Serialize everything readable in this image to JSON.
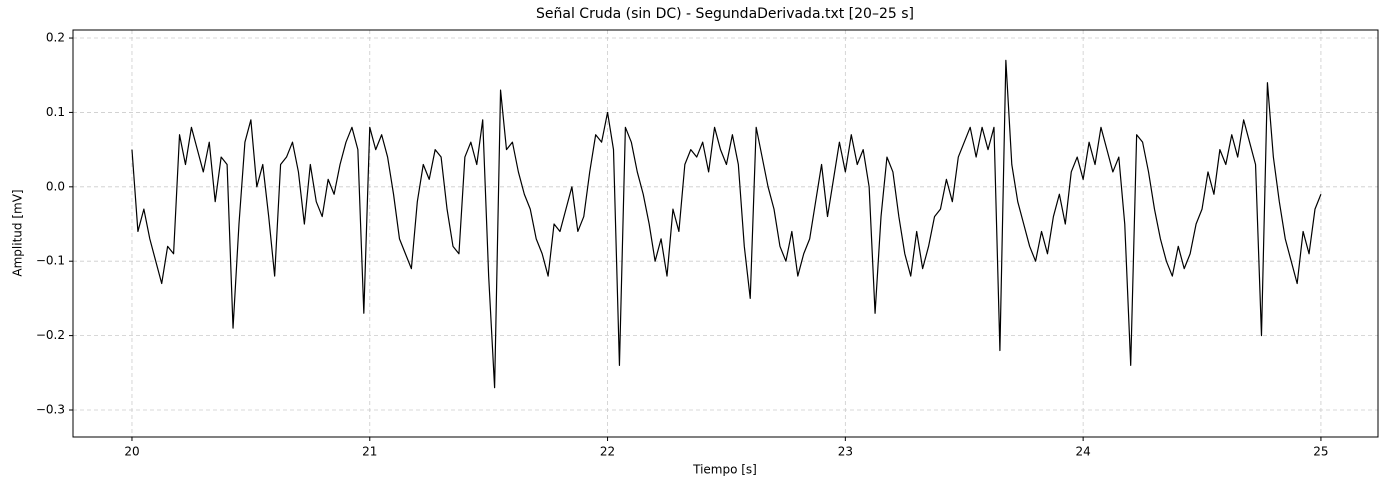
{
  "chart_data": {
    "type": "line",
    "title": "Señal Cruda (sin DC) - SegundaDerivada.txt [20–25 s]",
    "x_label": "Tiempo [s]",
    "y_label": "Amplitud [mV]",
    "x": [
      20,
      20.025,
      20.05,
      20.075,
      20.1,
      20.125,
      20.15,
      20.175,
      20.2,
      20.225,
      20.25,
      20.275,
      20.3,
      20.325,
      20.35,
      20.375,
      20.4,
      20.425,
      20.45,
      20.475,
      20.5,
      20.525,
      20.55,
      20.575,
      20.6,
      20.625,
      20.65,
      20.675,
      20.7,
      20.725,
      20.75,
      20.775,
      20.8,
      20.825,
      20.85,
      20.875,
      20.9,
      20.925,
      20.95,
      20.975,
      21,
      21.025,
      21.05,
      21.075,
      21.1,
      21.125,
      21.15,
      21.175,
      21.2,
      21.225,
      21.25,
      21.275,
      21.3,
      21.325,
      21.35,
      21.375,
      21.4,
      21.425,
      21.45,
      21.475,
      21.5,
      21.525,
      21.55,
      21.575,
      21.6,
      21.625,
      21.65,
      21.675,
      21.7,
      21.725,
      21.75,
      21.775,
      21.8,
      21.825,
      21.85,
      21.875,
      21.9,
      21.925,
      21.95,
      21.975,
      22,
      22.025,
      22.05,
      22.075,
      22.1,
      22.125,
      22.15,
      22.175,
      22.2,
      22.225,
      22.25,
      22.275,
      22.3,
      22.325,
      22.35,
      22.375,
      22.4,
      22.425,
      22.45,
      22.475,
      22.5,
      22.525,
      22.55,
      22.575,
      22.6,
      22.625,
      22.65,
      22.675,
      22.7,
      22.725,
      22.75,
      22.775,
      22.8,
      22.825,
      22.85,
      22.875,
      22.9,
      22.925,
      22.95,
      22.975,
      23,
      23.025,
      23.05,
      23.075,
      23.1,
      23.125,
      23.15,
      23.175,
      23.2,
      23.225,
      23.25,
      23.275,
      23.3,
      23.325,
      23.35,
      23.375,
      23.4,
      23.425,
      23.45,
      23.475,
      23.5,
      23.525,
      23.55,
      23.575,
      23.6,
      23.625,
      23.65,
      23.675,
      23.7,
      23.725,
      23.75,
      23.775,
      23.8,
      23.825,
      23.85,
      23.875,
      23.9,
      23.925,
      23.95,
      23.975,
      24,
      24.025,
      24.05,
      24.075,
      24.1,
      24.125,
      24.15,
      24.175,
      24.2,
      24.225,
      24.25,
      24.275,
      24.3,
      24.325,
      24.35,
      24.375,
      24.4,
      24.425,
      24.45,
      24.475,
      24.5,
      24.525,
      24.55,
      24.575,
      24.6,
      24.625,
      24.65,
      24.675,
      24.7,
      24.725,
      24.75,
      24.775,
      24.8,
      24.825,
      24.85,
      24.875,
      24.9,
      24.925,
      24.95,
      24.975,
      25
    ],
    "series": [
      {
        "name": "Señal",
        "color": "#000000",
        "values": [
          0.05,
          -0.06,
          -0.03,
          -0.07,
          -0.1,
          -0.13,
          -0.08,
          -0.09,
          0.07,
          0.03,
          0.08,
          0.05,
          0.02,
          0.06,
          -0.02,
          0.04,
          0.03,
          -0.19,
          -0.05,
          0.06,
          0.09,
          0.0,
          0.03,
          -0.04,
          -0.12,
          0.03,
          0.04,
          0.06,
          0.02,
          -0.05,
          0.03,
          -0.02,
          -0.04,
          0.01,
          -0.01,
          0.03,
          0.06,
          0.08,
          0.05,
          -0.17,
          0.08,
          0.05,
          0.07,
          0.04,
          -0.01,
          -0.07,
          -0.09,
          -0.11,
          -0.02,
          0.03,
          0.01,
          0.05,
          0.04,
          -0.03,
          -0.08,
          -0.09,
          0.04,
          0.06,
          0.03,
          0.09,
          -0.12,
          -0.27,
          0.13,
          0.05,
          0.06,
          0.02,
          -0.01,
          -0.03,
          -0.07,
          -0.09,
          -0.12,
          -0.05,
          -0.06,
          -0.03,
          0.0,
          -0.06,
          -0.04,
          0.02,
          0.07,
          0.06,
          0.1,
          0.05,
          -0.24,
          0.08,
          0.06,
          0.02,
          -0.01,
          -0.05,
          -0.1,
          -0.07,
          -0.12,
          -0.03,
          -0.06,
          0.03,
          0.05,
          0.04,
          0.06,
          0.02,
          0.08,
          0.05,
          0.03,
          0.07,
          0.03,
          -0.08,
          -0.15,
          0.08,
          0.04,
          0.0,
          -0.03,
          -0.08,
          -0.1,
          -0.06,
          -0.12,
          -0.09,
          -0.07,
          -0.02,
          0.03,
          -0.04,
          0.01,
          0.06,
          0.02,
          0.07,
          0.03,
          0.05,
          0.0,
          -0.17,
          -0.04,
          0.04,
          0.02,
          -0.04,
          -0.09,
          -0.12,
          -0.06,
          -0.11,
          -0.08,
          -0.04,
          -0.03,
          0.01,
          -0.02,
          0.04,
          0.06,
          0.08,
          0.04,
          0.08,
          0.05,
          0.08,
          -0.22,
          0.17,
          0.03,
          -0.02,
          -0.05,
          -0.08,
          -0.1,
          -0.06,
          -0.09,
          -0.04,
          -0.01,
          -0.05,
          0.02,
          0.04,
          0.01,
          0.06,
          0.03,
          0.08,
          0.05,
          0.02,
          0.04,
          -0.05,
          -0.24,
          0.07,
          0.06,
          0.02,
          -0.03,
          -0.07,
          -0.1,
          -0.12,
          -0.08,
          -0.11,
          -0.09,
          -0.05,
          -0.03,
          0.02,
          -0.01,
          0.05,
          0.03,
          0.07,
          0.04,
          0.09,
          0.06,
          0.03,
          -0.2,
          0.14,
          0.04,
          -0.02,
          -0.07,
          -0.1,
          -0.13,
          -0.06,
          -0.09,
          -0.03,
          -0.01
        ]
      }
    ],
    "xlim": [
      19.752,
      25.24
    ],
    "ylim": [
      -0.3363,
      0.2108
    ],
    "xticks": [
      20,
      21,
      22,
      23,
      24,
      25
    ],
    "yticks": [
      {
        "value": -0.3,
        "label": "−0.3"
      },
      {
        "value": -0.2,
        "label": "−0.2"
      },
      {
        "value": -0.1,
        "label": "−0.1"
      },
      {
        "value": 0,
        "label": "0.0"
      },
      0.1,
      0.2
    ],
    "grid": true
  }
}
